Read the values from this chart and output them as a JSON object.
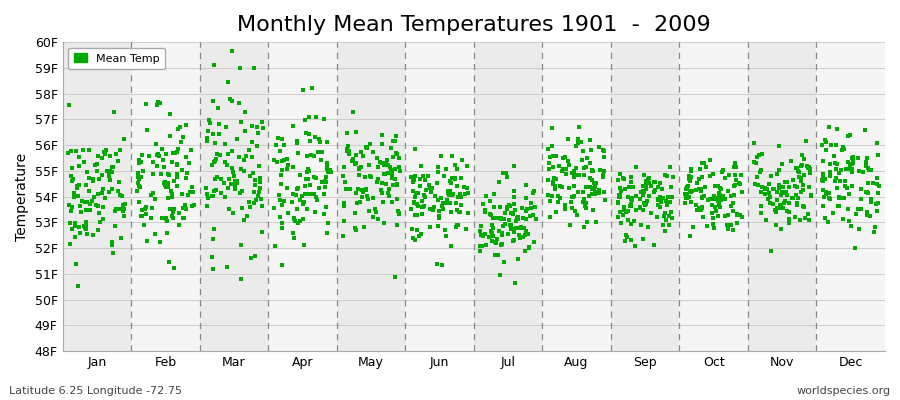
{
  "title": "Monthly Mean Temperatures 1901  -  2009",
  "ylabel": "Temperature",
  "xlabel": "",
  "ylim": [
    48,
    60
  ],
  "yticks": [
    48,
    49,
    50,
    51,
    52,
    53,
    54,
    55,
    56,
    57,
    58,
    59,
    60
  ],
  "ytick_labels": [
    "48F",
    "49F",
    "50F",
    "51F",
    "52F",
    "53F",
    "54F",
    "55F",
    "56F",
    "57F",
    "58F",
    "59F",
    "60F"
  ],
  "months": [
    "Jan",
    "Feb",
    "Mar",
    "Apr",
    "May",
    "Jun",
    "Jul",
    "Aug",
    "Sep",
    "Oct",
    "Nov",
    "Dec"
  ],
  "dot_color": "#00AA00",
  "dot_size": 6,
  "band_color_even": "#EBEBEB",
  "band_color_odd": "#F5F5F5",
  "grid_color": "#CCCCCC",
  "vline_color": "#888888",
  "legend_label": "Mean Temp",
  "footnote_left": "Latitude 6.25 Longitude -72.75",
  "footnote_right": "worldspecies.org",
  "title_fontsize": 16,
  "axis_label_fontsize": 10,
  "tick_fontsize": 9,
  "footnote_fontsize": 8,
  "seed": 42,
  "n_years": 109,
  "base_temps": [
    54.0,
    54.4,
    55.2,
    54.8,
    54.7,
    53.8,
    53.1,
    54.5,
    53.8,
    54.1,
    54.3,
    54.6
  ],
  "std_devs": [
    1.3,
    1.5,
    1.6,
    1.3,
    1.1,
    0.85,
    0.85,
    0.85,
    0.75,
    0.75,
    0.85,
    1.0
  ]
}
